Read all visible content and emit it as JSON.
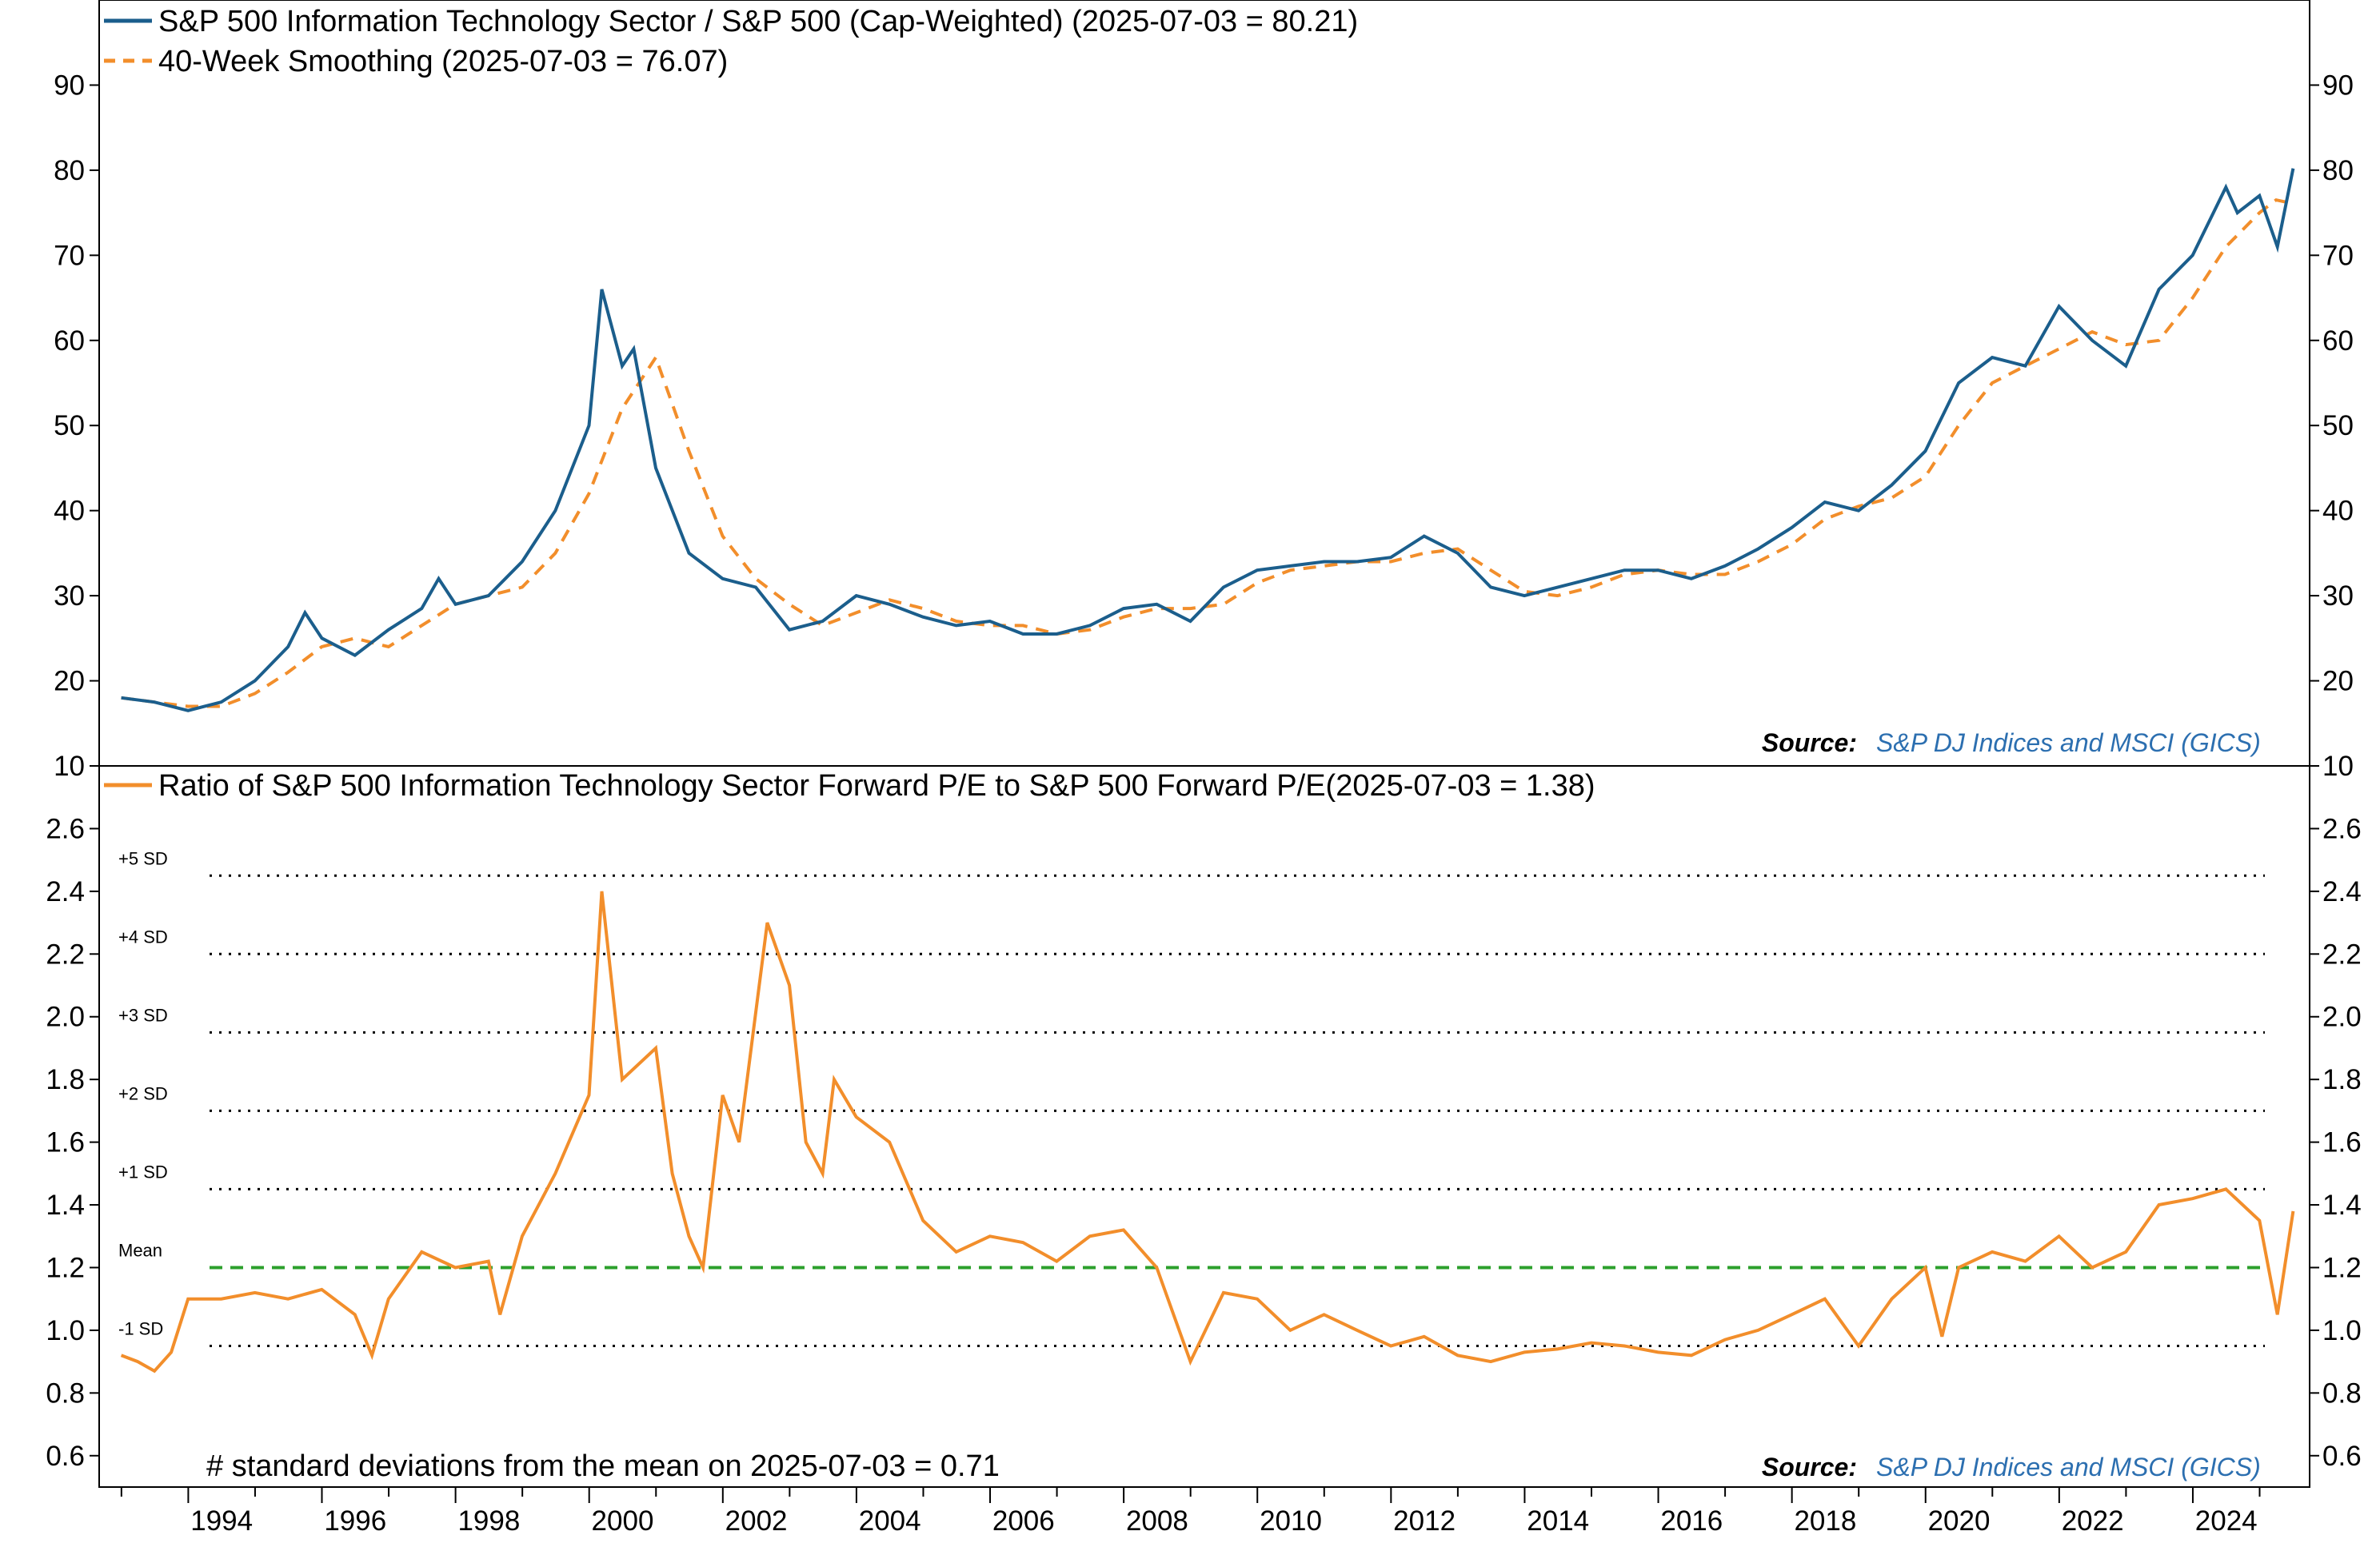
{
  "colors": {
    "tech_ratio": "#1b5e8c",
    "smoothing": "#f28e2b",
    "pe_ratio": "#f28e2b",
    "mean_line": "#2ca02c",
    "sd_line": "#000000",
    "source_value": "#2c6fb0"
  },
  "chart_data": [
    {
      "type": "line",
      "panel": "top",
      "x_axis": {
        "type": "date",
        "range": [
          "1992-09-01",
          "2025-10-01"
        ]
      },
      "ylim": [
        10,
        100
      ],
      "yticks": [
        10,
        20,
        30,
        40,
        50,
        60,
        70,
        80,
        90
      ],
      "y_axis_sides": "both",
      "legend_position": "top-left",
      "series": [
        {
          "name": "S&P 500 Information Technology Sector / S&P 500 (Cap-Weighted) (2025-07-03 = 80.21)",
          "style": "solid",
          "points": [
            [
              "1992-12-31",
              18.0
            ],
            [
              "1993-06-30",
              17.5
            ],
            [
              "1993-12-31",
              16.5
            ],
            [
              "1994-06-30",
              17.5
            ],
            [
              "1994-12-31",
              20.0
            ],
            [
              "1995-06-30",
              24.0
            ],
            [
              "1995-10-01",
              28.0
            ],
            [
              "1996-01-01",
              25.0
            ],
            [
              "1996-06-30",
              23.0
            ],
            [
              "1996-12-31",
              26.0
            ],
            [
              "1997-06-30",
              28.5
            ],
            [
              "1997-10-01",
              32.0
            ],
            [
              "1998-01-01",
              29.0
            ],
            [
              "1998-06-30",
              30.0
            ],
            [
              "1998-12-31",
              34.0
            ],
            [
              "1999-06-30",
              40.0
            ],
            [
              "1999-12-31",
              50.0
            ],
            [
              "2000-03-10",
              66.0
            ],
            [
              "2000-06-30",
              57.0
            ],
            [
              "2000-09-01",
              59.0
            ],
            [
              "2000-12-31",
              45.0
            ],
            [
              "2001-06-30",
              35.0
            ],
            [
              "2001-12-31",
              32.0
            ],
            [
              "2002-06-30",
              31.0
            ],
            [
              "2002-12-31",
              26.0
            ],
            [
              "2003-06-30",
              27.0
            ],
            [
              "2003-12-31",
              30.0
            ],
            [
              "2004-06-30",
              29.0
            ],
            [
              "2004-12-31",
              27.5
            ],
            [
              "2005-06-30",
              26.5
            ],
            [
              "2005-12-31",
              27.0
            ],
            [
              "2006-06-30",
              25.5
            ],
            [
              "2006-12-31",
              25.5
            ],
            [
              "2007-06-30",
              26.5
            ],
            [
              "2007-12-31",
              28.5
            ],
            [
              "2008-06-30",
              29.0
            ],
            [
              "2008-12-31",
              27.0
            ],
            [
              "2009-06-30",
              31.0
            ],
            [
              "2009-12-31",
              33.0
            ],
            [
              "2010-06-30",
              33.5
            ],
            [
              "2010-12-31",
              34.0
            ],
            [
              "2011-06-30",
              34.0
            ],
            [
              "2011-12-31",
              34.5
            ],
            [
              "2012-06-30",
              37.0
            ],
            [
              "2012-12-31",
              35.0
            ],
            [
              "2013-06-30",
              31.0
            ],
            [
              "2013-12-31",
              30.0
            ],
            [
              "2014-06-30",
              31.0
            ],
            [
              "2014-12-31",
              32.0
            ],
            [
              "2015-06-30",
              33.0
            ],
            [
              "2015-12-31",
              33.0
            ],
            [
              "2016-06-30",
              32.0
            ],
            [
              "2016-12-31",
              33.5
            ],
            [
              "2017-06-30",
              35.5
            ],
            [
              "2017-12-31",
              38.0
            ],
            [
              "2018-06-30",
              41.0
            ],
            [
              "2018-12-31",
              40.0
            ],
            [
              "2019-06-30",
              43.0
            ],
            [
              "2019-12-31",
              47.0
            ],
            [
              "2020-06-30",
              55.0
            ],
            [
              "2020-12-31",
              58.0
            ],
            [
              "2021-06-30",
              57.0
            ],
            [
              "2021-12-31",
              64.0
            ],
            [
              "2022-06-30",
              60.0
            ],
            [
              "2022-12-31",
              57.0
            ],
            [
              "2023-06-30",
              66.0
            ],
            [
              "2023-12-31",
              70.0
            ],
            [
              "2024-06-30",
              78.0
            ],
            [
              "2024-09-01",
              75.0
            ],
            [
              "2024-12-31",
              77.0
            ],
            [
              "2025-04-08",
              71.0
            ],
            [
              "2025-07-03",
              80.21
            ]
          ]
        },
        {
          "name": "40-Week Smoothing (2025-07-03 = 76.07)",
          "style": "dashed",
          "points": [
            [
              "1992-12-31",
              18.0
            ],
            [
              "1993-06-30",
              17.5
            ],
            [
              "1993-12-31",
              17.0
            ],
            [
              "1994-06-30",
              17.0
            ],
            [
              "1994-12-31",
              18.5
            ],
            [
              "1995-06-30",
              21.0
            ],
            [
              "1995-12-31",
              24.0
            ],
            [
              "1996-06-30",
              25.0
            ],
            [
              "1996-12-31",
              24.0
            ],
            [
              "1997-06-30",
              26.5
            ],
            [
              "1997-12-31",
              29.0
            ],
            [
              "1998-06-30",
              30.0
            ],
            [
              "1998-12-31",
              31.0
            ],
            [
              "1999-06-30",
              35.0
            ],
            [
              "1999-12-31",
              42.0
            ],
            [
              "2000-06-30",
              52.0
            ],
            [
              "2000-12-31",
              58.0
            ],
            [
              "2001-06-30",
              47.0
            ],
            [
              "2001-12-31",
              37.0
            ],
            [
              "2002-06-30",
              32.0
            ],
            [
              "2002-12-31",
              29.0
            ],
            [
              "2003-06-30",
              26.5
            ],
            [
              "2003-12-31",
              28.0
            ],
            [
              "2004-06-30",
              29.5
            ],
            [
              "2004-12-31",
              28.5
            ],
            [
              "2005-06-30",
              27.0
            ],
            [
              "2005-12-31",
              26.5
            ],
            [
              "2006-06-30",
              26.5
            ],
            [
              "2006-12-31",
              25.5
            ],
            [
              "2007-06-30",
              26.0
            ],
            [
              "2007-12-31",
              27.5
            ],
            [
              "2008-06-30",
              28.5
            ],
            [
              "2008-12-31",
              28.5
            ],
            [
              "2009-06-30",
              29.0
            ],
            [
              "2009-12-31",
              31.5
            ],
            [
              "2010-06-30",
              33.0
            ],
            [
              "2010-12-31",
              33.5
            ],
            [
              "2011-06-30",
              34.0
            ],
            [
              "2011-12-31",
              34.0
            ],
            [
              "2012-06-30",
              35.0
            ],
            [
              "2012-12-31",
              35.5
            ],
            [
              "2013-06-30",
              33.0
            ],
            [
              "2013-12-31",
              30.5
            ],
            [
              "2014-06-30",
              30.0
            ],
            [
              "2014-12-31",
              31.0
            ],
            [
              "2015-06-30",
              32.5
            ],
            [
              "2015-12-31",
              33.0
            ],
            [
              "2016-06-30",
              32.5
            ],
            [
              "2016-12-31",
              32.5
            ],
            [
              "2017-06-30",
              34.0
            ],
            [
              "2017-12-31",
              36.0
            ],
            [
              "2018-06-30",
              39.0
            ],
            [
              "2018-12-31",
              40.5
            ],
            [
              "2019-06-30",
              41.5
            ],
            [
              "2019-12-31",
              44.0
            ],
            [
              "2020-06-30",
              50.0
            ],
            [
              "2020-12-31",
              55.0
            ],
            [
              "2021-06-30",
              57.0
            ],
            [
              "2021-12-31",
              59.0
            ],
            [
              "2022-06-30",
              61.0
            ],
            [
              "2022-12-31",
              59.5
            ],
            [
              "2023-06-30",
              60.0
            ],
            [
              "2023-12-31",
              65.0
            ],
            [
              "2024-06-30",
              71.0
            ],
            [
              "2024-12-31",
              75.0
            ],
            [
              "2025-04-01",
              76.5
            ],
            [
              "2025-07-03",
              76.07
            ]
          ]
        }
      ],
      "annotations": {
        "source_label": "Source:",
        "source_value": "S&P DJ Indices and MSCI (GICS)"
      }
    },
    {
      "type": "line",
      "panel": "bottom",
      "x_axis": {
        "type": "date",
        "range": [
          "1992-09-01",
          "2025-10-01"
        ]
      },
      "xtick_labels": [
        "1994",
        "1996",
        "1998",
        "2000",
        "2002",
        "2004",
        "2006",
        "2008",
        "2010",
        "2012",
        "2014",
        "2016",
        "2018",
        "2020",
        "2022",
        "2024"
      ],
      "ylim": [
        0.5,
        2.8
      ],
      "yticks": [
        "0.6",
        "0.8",
        "1.0",
        "1.2",
        "1.4",
        "1.6",
        "1.8",
        "2.0",
        "2.2",
        "2.4",
        "2.6"
      ],
      "y_axis_sides": "both",
      "legend_position": "top-left",
      "series": [
        {
          "name": "Ratio of S&P 500 Information Technology Sector Forward P/E to S&P 500 Forward P/E(2025-07-03 = 1.38)",
          "style": "solid",
          "points": [
            [
              "1992-12-31",
              0.92
            ],
            [
              "1993-03-31",
              0.9
            ],
            [
              "1993-06-30",
              0.87
            ],
            [
              "1993-09-30",
              0.93
            ],
            [
              "1993-12-31",
              1.1
            ],
            [
              "1994-06-30",
              1.1
            ],
            [
              "1994-12-31",
              1.12
            ],
            [
              "1995-06-30",
              1.1
            ],
            [
              "1995-12-31",
              1.13
            ],
            [
              "1996-06-30",
              1.05
            ],
            [
              "1996-10-01",
              0.92
            ],
            [
              "1996-12-31",
              1.1
            ],
            [
              "1997-06-30",
              1.25
            ],
            [
              "1997-12-31",
              1.2
            ],
            [
              "1998-06-30",
              1.22
            ],
            [
              "1998-09-01",
              1.05
            ],
            [
              "1998-12-31",
              1.3
            ],
            [
              "1999-06-30",
              1.5
            ],
            [
              "1999-12-31",
              1.75
            ],
            [
              "2000-03-10",
              2.4
            ],
            [
              "2000-06-30",
              1.8
            ],
            [
              "2000-12-31",
              1.9
            ],
            [
              "2001-03-31",
              1.5
            ],
            [
              "2001-06-30",
              1.3
            ],
            [
              "2001-09-15",
              1.2
            ],
            [
              "2001-12-31",
              1.75
            ],
            [
              "2002-03-31",
              1.6
            ],
            [
              "2002-09-01",
              2.3
            ],
            [
              "2002-12-31",
              2.1
            ],
            [
              "2003-03-31",
              1.6
            ],
            [
              "2003-06-30",
              1.5
            ],
            [
              "2003-09-01",
              1.8
            ],
            [
              "2003-12-31",
              1.68
            ],
            [
              "2004-06-30",
              1.6
            ],
            [
              "2004-12-31",
              1.35
            ],
            [
              "2005-06-30",
              1.25
            ],
            [
              "2005-12-31",
              1.3
            ],
            [
              "2006-06-30",
              1.28
            ],
            [
              "2006-12-31",
              1.22
            ],
            [
              "2007-06-30",
              1.3
            ],
            [
              "2007-12-31",
              1.32
            ],
            [
              "2008-06-30",
              1.2
            ],
            [
              "2008-12-31",
              0.9
            ],
            [
              "2009-06-30",
              1.12
            ],
            [
              "2009-12-31",
              1.1
            ],
            [
              "2010-06-30",
              1.0
            ],
            [
              "2010-12-31",
              1.05
            ],
            [
              "2011-06-30",
              1.0
            ],
            [
              "2011-12-31",
              0.95
            ],
            [
              "2012-06-30",
              0.98
            ],
            [
              "2012-12-31",
              0.92
            ],
            [
              "2013-06-30",
              0.9
            ],
            [
              "2013-12-31",
              0.93
            ],
            [
              "2014-06-30",
              0.94
            ],
            [
              "2014-12-31",
              0.96
            ],
            [
              "2015-06-30",
              0.95
            ],
            [
              "2015-12-31",
              0.93
            ],
            [
              "2016-06-30",
              0.92
            ],
            [
              "2016-12-31",
              0.97
            ],
            [
              "2017-06-30",
              1.0
            ],
            [
              "2017-12-31",
              1.05
            ],
            [
              "2018-06-30",
              1.1
            ],
            [
              "2018-12-31",
              0.95
            ],
            [
              "2019-06-30",
              1.1
            ],
            [
              "2019-12-31",
              1.2
            ],
            [
              "2020-03-31",
              0.98
            ],
            [
              "2020-06-30",
              1.2
            ],
            [
              "2020-12-31",
              1.25
            ],
            [
              "2021-06-30",
              1.22
            ],
            [
              "2021-12-31",
              1.3
            ],
            [
              "2022-06-30",
              1.2
            ],
            [
              "2022-12-31",
              1.25
            ],
            [
              "2023-06-30",
              1.4
            ],
            [
              "2023-12-31",
              1.42
            ],
            [
              "2024-06-30",
              1.45
            ],
            [
              "2024-12-31",
              1.35
            ],
            [
              "2025-04-08",
              1.05
            ],
            [
              "2025-07-03",
              1.38
            ]
          ]
        }
      ],
      "reference_lines": [
        {
          "label": "+5 SD",
          "value": 2.45,
          "style": "dotted"
        },
        {
          "label": "+4 SD",
          "value": 2.2,
          "style": "dotted"
        },
        {
          "label": "+3 SD",
          "value": 1.95,
          "style": "dotted"
        },
        {
          "label": "+2 SD",
          "value": 1.7,
          "style": "dotted"
        },
        {
          "label": "+1 SD",
          "value": 1.45,
          "style": "dotted"
        },
        {
          "label": "Mean",
          "value": 1.2,
          "style": "dashed"
        },
        {
          "label": "-1 SD",
          "value": 0.95,
          "style": "dotted"
        }
      ],
      "annotations": {
        "note": "# standard deviations from the mean on 2025-07-03 = 0.71",
        "source_label": "Source:",
        "source_value": "S&P DJ Indices and MSCI (GICS)"
      }
    }
  ]
}
